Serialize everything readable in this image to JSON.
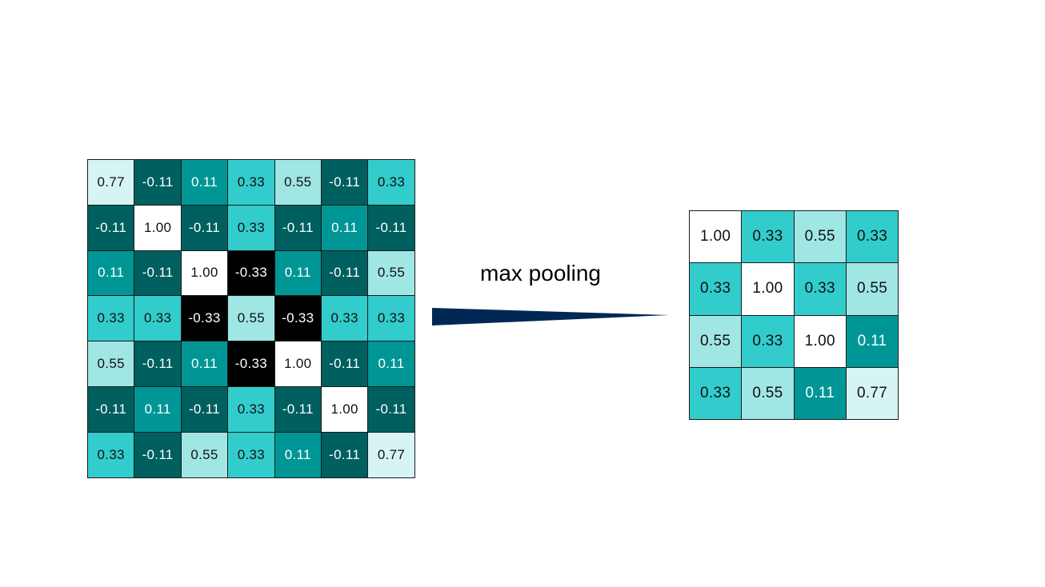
{
  "operation_label": "max pooling",
  "colors": {
    "-0.33": {
      "bg": "#000000",
      "fg": "#ffffff"
    },
    "-0.11": {
      "bg": "#005f5f",
      "fg": "#ffffff"
    },
    "0.11": {
      "bg": "#009696",
      "fg": "#ffffff"
    },
    "0.33": {
      "bg": "#33cccc",
      "fg": "#111111"
    },
    "0.55": {
      "bg": "#a0e6e4",
      "fg": "#111111"
    },
    "0.77": {
      "bg": "#d5f4f3",
      "fg": "#111111"
    },
    "1.00": {
      "bg": "#ffffff",
      "fg": "#111111"
    },
    "arrow": "#012754"
  },
  "input_matrix": [
    [
      "0.77",
      "-0.11",
      "0.11",
      "0.33",
      "0.55",
      "-0.11",
      "0.33"
    ],
    [
      "-0.11",
      "1.00",
      "-0.11",
      "0.33",
      "-0.11",
      "0.11",
      "-0.11"
    ],
    [
      "0.11",
      "-0.11",
      "1.00",
      "-0.33",
      "0.11",
      "-0.11",
      "0.55"
    ],
    [
      "0.33",
      "0.33",
      "-0.33",
      "0.55",
      "-0.33",
      "0.33",
      "0.33"
    ],
    [
      "0.55",
      "-0.11",
      "0.11",
      "-0.33",
      "1.00",
      "-0.11",
      "0.11"
    ],
    [
      "-0.11",
      "0.11",
      "-0.11",
      "0.33",
      "-0.11",
      "1.00",
      "-0.11"
    ],
    [
      "0.33",
      "-0.11",
      "0.55",
      "0.33",
      "0.11",
      "-0.11",
      "0.77"
    ]
  ],
  "output_matrix": [
    [
      "1.00",
      "0.33",
      "0.55",
      "0.33"
    ],
    [
      "0.33",
      "1.00",
      "0.33",
      "0.55"
    ],
    [
      "0.55",
      "0.33",
      "1.00",
      "0.11"
    ],
    [
      "0.33",
      "0.55",
      "0.11",
      "0.77"
    ]
  ]
}
